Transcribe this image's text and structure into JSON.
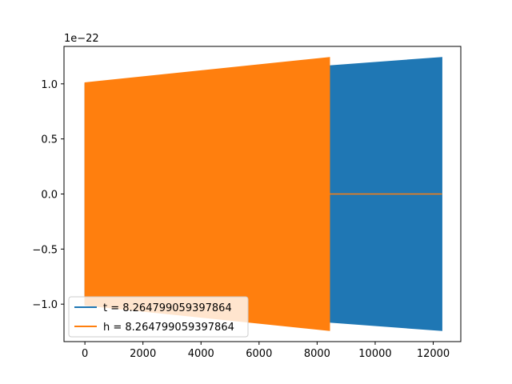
{
  "chart_data": {
    "type": "line",
    "title": "",
    "xlabel": "",
    "ylabel": "",
    "y_offset_label": "1e−22",
    "xlim": [
      -720,
      12950
    ],
    "ylim": [
      -1.34,
      1.34
    ],
    "xticks": [
      0,
      2000,
      4000,
      6000,
      8000,
      10000,
      12000
    ],
    "xtick_labels": [
      "0",
      "2000",
      "4000",
      "6000",
      "8000",
      "10000",
      "12000"
    ],
    "yticks": [
      -1.0,
      -0.5,
      0.0,
      0.5,
      1.0
    ],
    "ytick_labels": [
      "−1.0",
      "−0.5",
      "0.0",
      "0.5",
      "1.0"
    ],
    "grid": false,
    "legend_position": "lower-left",
    "series": [
      {
        "name": "t = 8.264799059397864",
        "color": "#1f77b4",
        "x_start": 0,
        "x_end": 12300,
        "envelope_start": 1.0,
        "envelope_end": 1.24,
        "tail_value": 0.0
      },
      {
        "name": "h = 8.264799059397864",
        "color": "#ff7f0e",
        "x_start": 0,
        "x_end": 8430,
        "envelope_start": 1.01,
        "envelope_end": 1.24,
        "tail_x_end": 12300,
        "tail_value": 0.0
      }
    ]
  }
}
